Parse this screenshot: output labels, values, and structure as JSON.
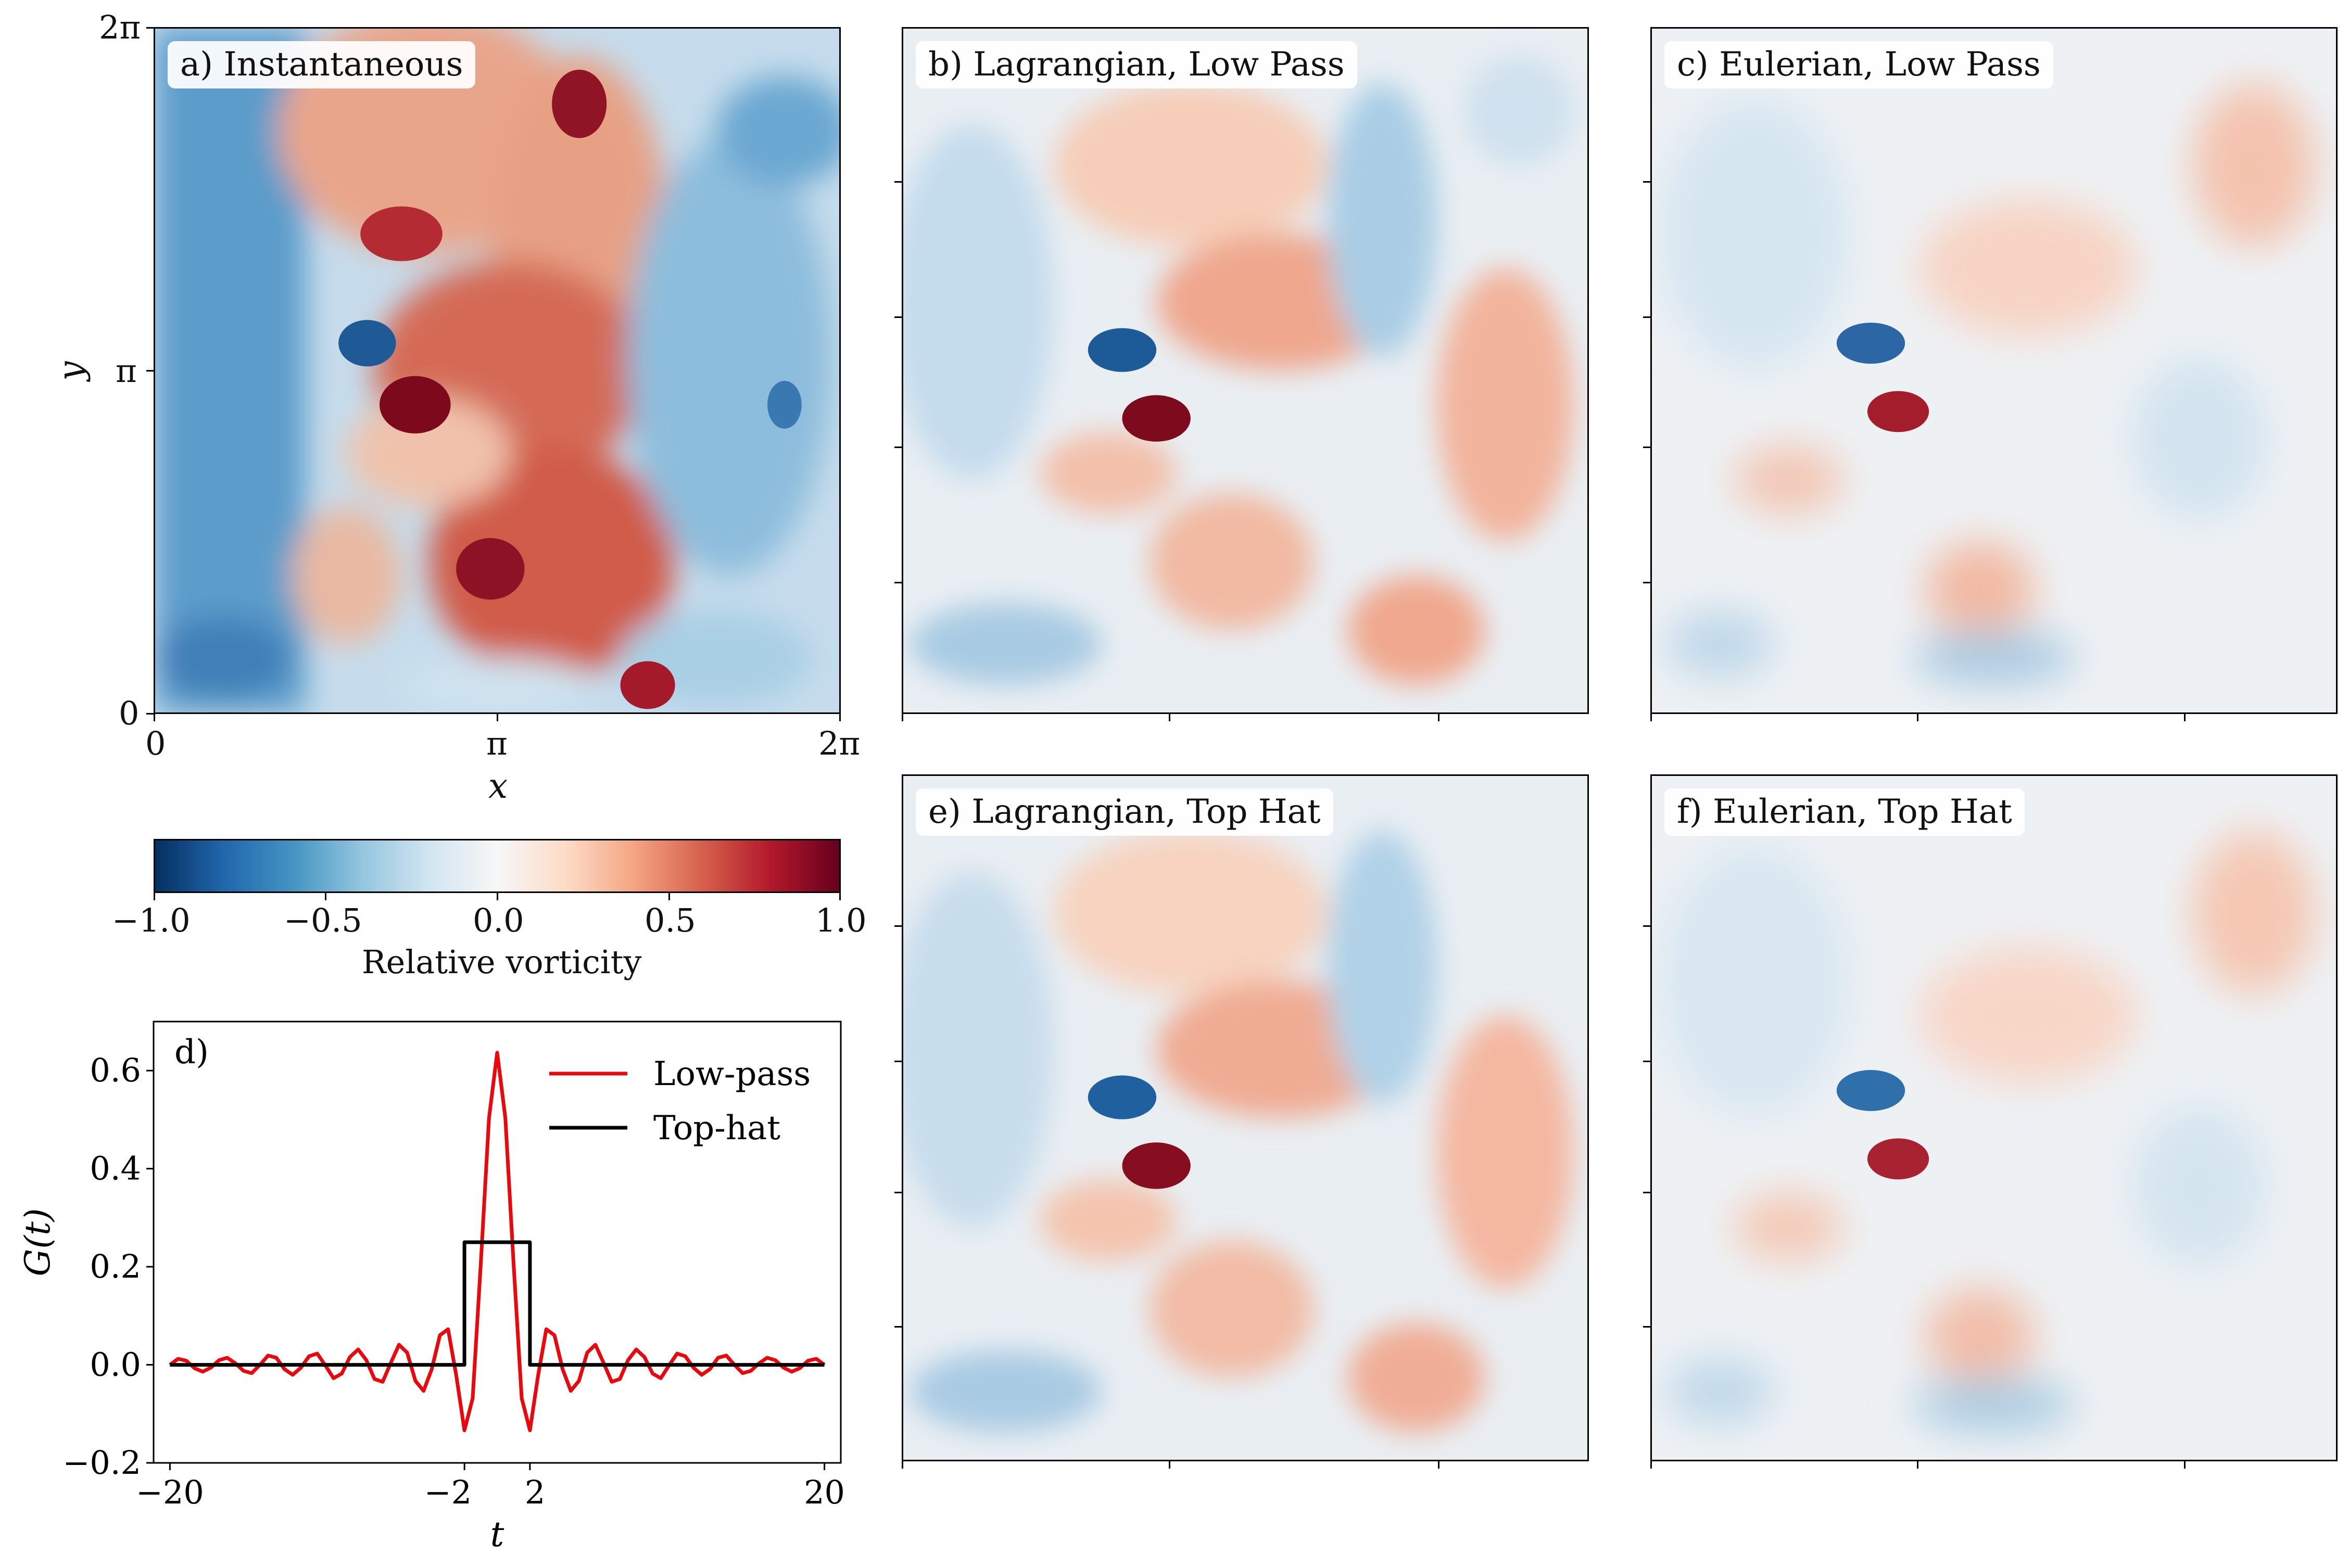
{
  "panels": {
    "a": {
      "label": "a) Instantaneous"
    },
    "b": {
      "label": "b) Lagrangian, Low Pass"
    },
    "c": {
      "label": "c) Eulerian, Low Pass"
    },
    "d": {
      "label": "d)"
    },
    "e": {
      "label": "e) Lagrangian, Top Hat"
    },
    "f": {
      "label": "f) Eulerian, Top Hat"
    }
  },
  "field_axes": {
    "xlabel": "x",
    "ylabel": "y",
    "xticks": [
      "0",
      "π",
      "2π"
    ],
    "yticks": [
      "0",
      "π",
      "2π"
    ]
  },
  "colorbar": {
    "label": "Relative vorticity",
    "ticks": [
      "−1.0",
      "−0.5",
      "0.0",
      "0.5",
      "1.0"
    ],
    "colormap": [
      "#053061",
      "#2166ac",
      "#4393c3",
      "#92c5de",
      "#d1e5f0",
      "#f7f7f7",
      "#fddbc7",
      "#f4a582",
      "#d6604d",
      "#b2182b",
      "#67001f"
    ]
  },
  "chart_data": {
    "type": "line",
    "title": "d)",
    "xlabel": "t",
    "ylabel": "G(t)",
    "xlim": [
      -21,
      21
    ],
    "ylim": [
      -0.2,
      0.7
    ],
    "xticks": [
      {
        "v": -20,
        "label": "−20"
      },
      {
        "v": -2,
        "label": "−2"
      },
      {
        "v": 2,
        "label": "2"
      },
      {
        "v": 20,
        "label": "20"
      }
    ],
    "yticks": [
      {
        "v": -0.2,
        "label": "−0.2"
      },
      {
        "v": 0.0,
        "label": "0.0"
      },
      {
        "v": 0.2,
        "label": "0.2"
      },
      {
        "v": 0.4,
        "label": "0.4"
      },
      {
        "v": 0.6,
        "label": "0.6"
      }
    ],
    "legend_position": "top-right",
    "series": [
      {
        "name": "Low-pass",
        "color": "#e8080e",
        "x": [
          -20.0,
          -19.5,
          -19.0,
          -18.5,
          -18.0,
          -17.5,
          -17.0,
          -16.5,
          -16.0,
          -15.5,
          -15.0,
          -14.5,
          -14.0,
          -13.5,
          -13.0,
          -12.5,
          -12.0,
          -11.5,
          -11.0,
          -10.5,
          -10.0,
          -9.5,
          -9.0,
          -8.5,
          -8.0,
          -7.5,
          -7.0,
          -6.5,
          -6.0,
          -5.5,
          -5.0,
          -4.5,
          -4.0,
          -3.5,
          -3.0,
          -2.5,
          -2.0,
          -1.5,
          -1.0,
          -0.5,
          0.0,
          0.5,
          1.0,
          1.5,
          2.0,
          2.5,
          3.0,
          3.5,
          4.0,
          4.5,
          5.0,
          5.5,
          6.0,
          6.5,
          7.0,
          7.5,
          8.0,
          8.5,
          9.0,
          9.5,
          10.0,
          10.5,
          11.0,
          11.5,
          12.0,
          12.5,
          13.0,
          13.5,
          14.0,
          14.5,
          15.0,
          15.5,
          16.0,
          16.5,
          17.0,
          17.5,
          18.0,
          18.5,
          19.0,
          19.5,
          20.0
        ],
        "y": [
          0.0,
          0.0123,
          0.0083,
          -0.0068,
          -0.0141,
          -0.0058,
          0.0094,
          0.0144,
          0.003,
          -0.0125,
          -0.017,
          0.0,
          0.0189,
          0.0144,
          -0.0089,
          -0.0204,
          -0.006,
          0.0174,
          0.023,
          -0.0014,
          -0.0273,
          -0.018,
          0.0158,
          0.0314,
          0.0096,
          -0.0289,
          -0.0348,
          0.0041,
          0.0409,
          0.0248,
          -0.0326,
          -0.0531,
          -0.009,
          0.0603,
          0.0726,
          -0.0218,
          -0.1337,
          -0.0683,
          0.208,
          0.5034,
          0.6366,
          0.5034,
          0.208,
          -0.0683,
          -0.1337,
          -0.0218,
          0.0726,
          0.0603,
          -0.009,
          -0.0531,
          -0.0326,
          0.0248,
          0.0409,
          0.0041,
          -0.0348,
          -0.0289,
          0.0096,
          0.0314,
          0.0158,
          -0.018,
          -0.0273,
          -0.0014,
          0.023,
          0.0174,
          -0.006,
          -0.0204,
          -0.0089,
          0.0144,
          0.0189,
          0.0,
          -0.017,
          -0.0125,
          0.003,
          0.0144,
          0.0094,
          -0.0058,
          -0.0141,
          -0.0068,
          0.0083,
          0.0123,
          0.0
        ]
      },
      {
        "name": "Top-hat",
        "color": "#000000",
        "x": [
          -20,
          -2,
          -2,
          2,
          2,
          20
        ],
        "y": [
          0.0,
          0.0,
          0.25,
          0.25,
          0.0,
          0.0
        ]
      }
    ]
  }
}
